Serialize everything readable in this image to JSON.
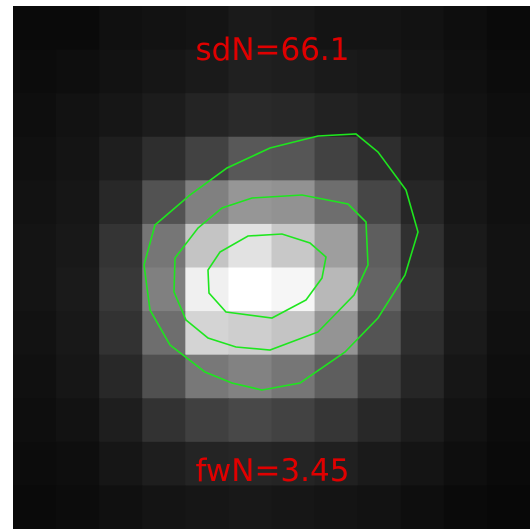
{
  "image": {
    "top_label": "sdN=66.1",
    "bottom_label": "fwN=3.45",
    "label_color": "#e00000",
    "contour_color": "#1ee61e",
    "background_color": "#000000",
    "pixel_grid": {
      "cols": 12,
      "rows": 12,
      "gray_levels": [
        [
          10,
          10,
          16,
          18,
          20,
          26,
          24,
          20,
          20,
          18,
          14,
          10
        ],
        [
          12,
          14,
          18,
          22,
          26,
          32,
          30,
          26,
          24,
          20,
          16,
          12
        ],
        [
          14,
          18,
          22,
          28,
          36,
          42,
          40,
          34,
          30,
          24,
          18,
          14
        ],
        [
          16,
          20,
          30,
          46,
          66,
          88,
          86,
          66,
          46,
          30,
          20,
          16
        ],
        [
          18,
          22,
          40,
          82,
          128,
          150,
          146,
          110,
          70,
          38,
          22,
          16
        ],
        [
          20,
          24,
          52,
          118,
          196,
          226,
          200,
          158,
          94,
          48,
          26,
          18
        ],
        [
          20,
          26,
          56,
          128,
          240,
          255,
          246,
          184,
          100,
          52,
          28,
          18
        ],
        [
          18,
          24,
          50,
          110,
          212,
          206,
          196,
          148,
          84,
          46,
          26,
          16
        ],
        [
          16,
          22,
          40,
          80,
          120,
          130,
          118,
          94,
          60,
          38,
          22,
          14
        ],
        [
          14,
          18,
          30,
          50,
          64,
          72,
          66,
          54,
          40,
          28,
          18,
          12
        ],
        [
          12,
          14,
          22,
          30,
          36,
          38,
          36,
          32,
          26,
          20,
          14,
          10
        ],
        [
          10,
          12,
          16,
          20,
          22,
          24,
          22,
          20,
          18,
          14,
          10,
          8
        ]
      ]
    }
  }
}
